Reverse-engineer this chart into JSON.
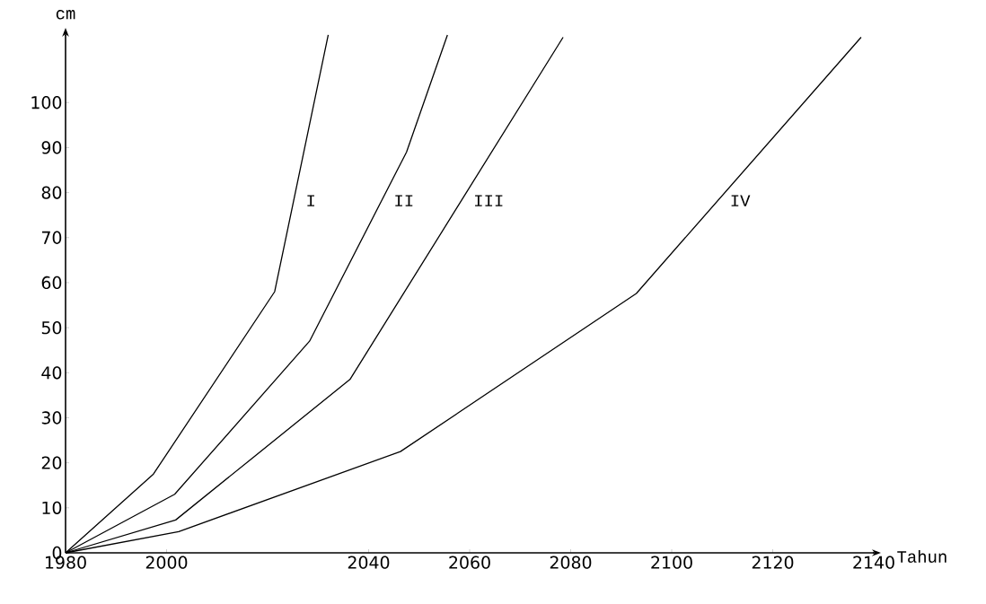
{
  "chart_data": {
    "type": "line",
    "xlabel": "Tahun",
    "ylabel": "cm",
    "xlim": [
      1980,
      2140
    ],
    "ylim": [
      0,
      115
    ],
    "xticks": [
      1980,
      2000,
      2040,
      2060,
      2080,
      2100,
      2120,
      2140
    ],
    "yticks": [
      0,
      10,
      20,
      30,
      40,
      50,
      60,
      70,
      80,
      90,
      100
    ],
    "grid": false,
    "marker": "none",
    "line_style": "solid",
    "series": [
      {
        "name": "I",
        "color": "#000000",
        "x": [
          1980,
          1997.4,
          2021.4,
          2032
        ],
        "values": [
          0,
          17.5,
          58,
          115
        ]
      },
      {
        "name": "II",
        "color": "#000000",
        "x": [
          1980,
          2001.6,
          2028.3,
          2047.5,
          2055.6
        ],
        "values": [
          0,
          13,
          47,
          89,
          115
        ]
      },
      {
        "name": "III",
        "color": "#000000",
        "x": [
          1980,
          2001.8,
          2036.3,
          2078.5
        ],
        "values": [
          0,
          7.3,
          38.5,
          114.5
        ]
      },
      {
        "name": "IV",
        "color": "#000000",
        "x": [
          1980,
          2002.4,
          2046.3,
          2093,
          2137.5
        ],
        "values": [
          0,
          4.7,
          22.5,
          57.6,
          114.5
        ]
      }
    ]
  }
}
